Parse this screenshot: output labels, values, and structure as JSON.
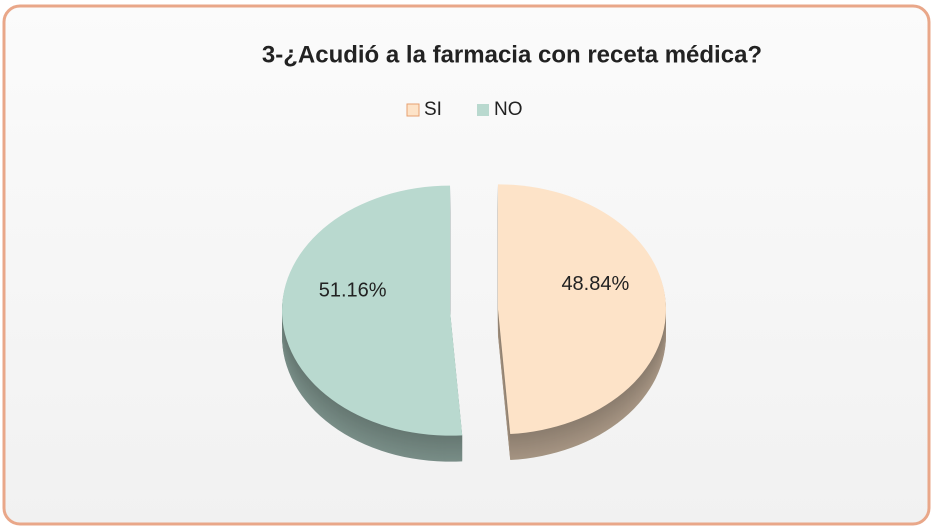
{
  "chart_data": {
    "type": "pie",
    "title": "3-¿Acudió a la farmacia con receta médica?",
    "categories": [
      "SI",
      "NO"
    ],
    "values": [
      48.84,
      51.16
    ],
    "value_labels": [
      "48.84%",
      "51.16%"
    ],
    "colors": [
      "#fde3c8",
      "#b9d9cf"
    ],
    "legend": "top"
  }
}
